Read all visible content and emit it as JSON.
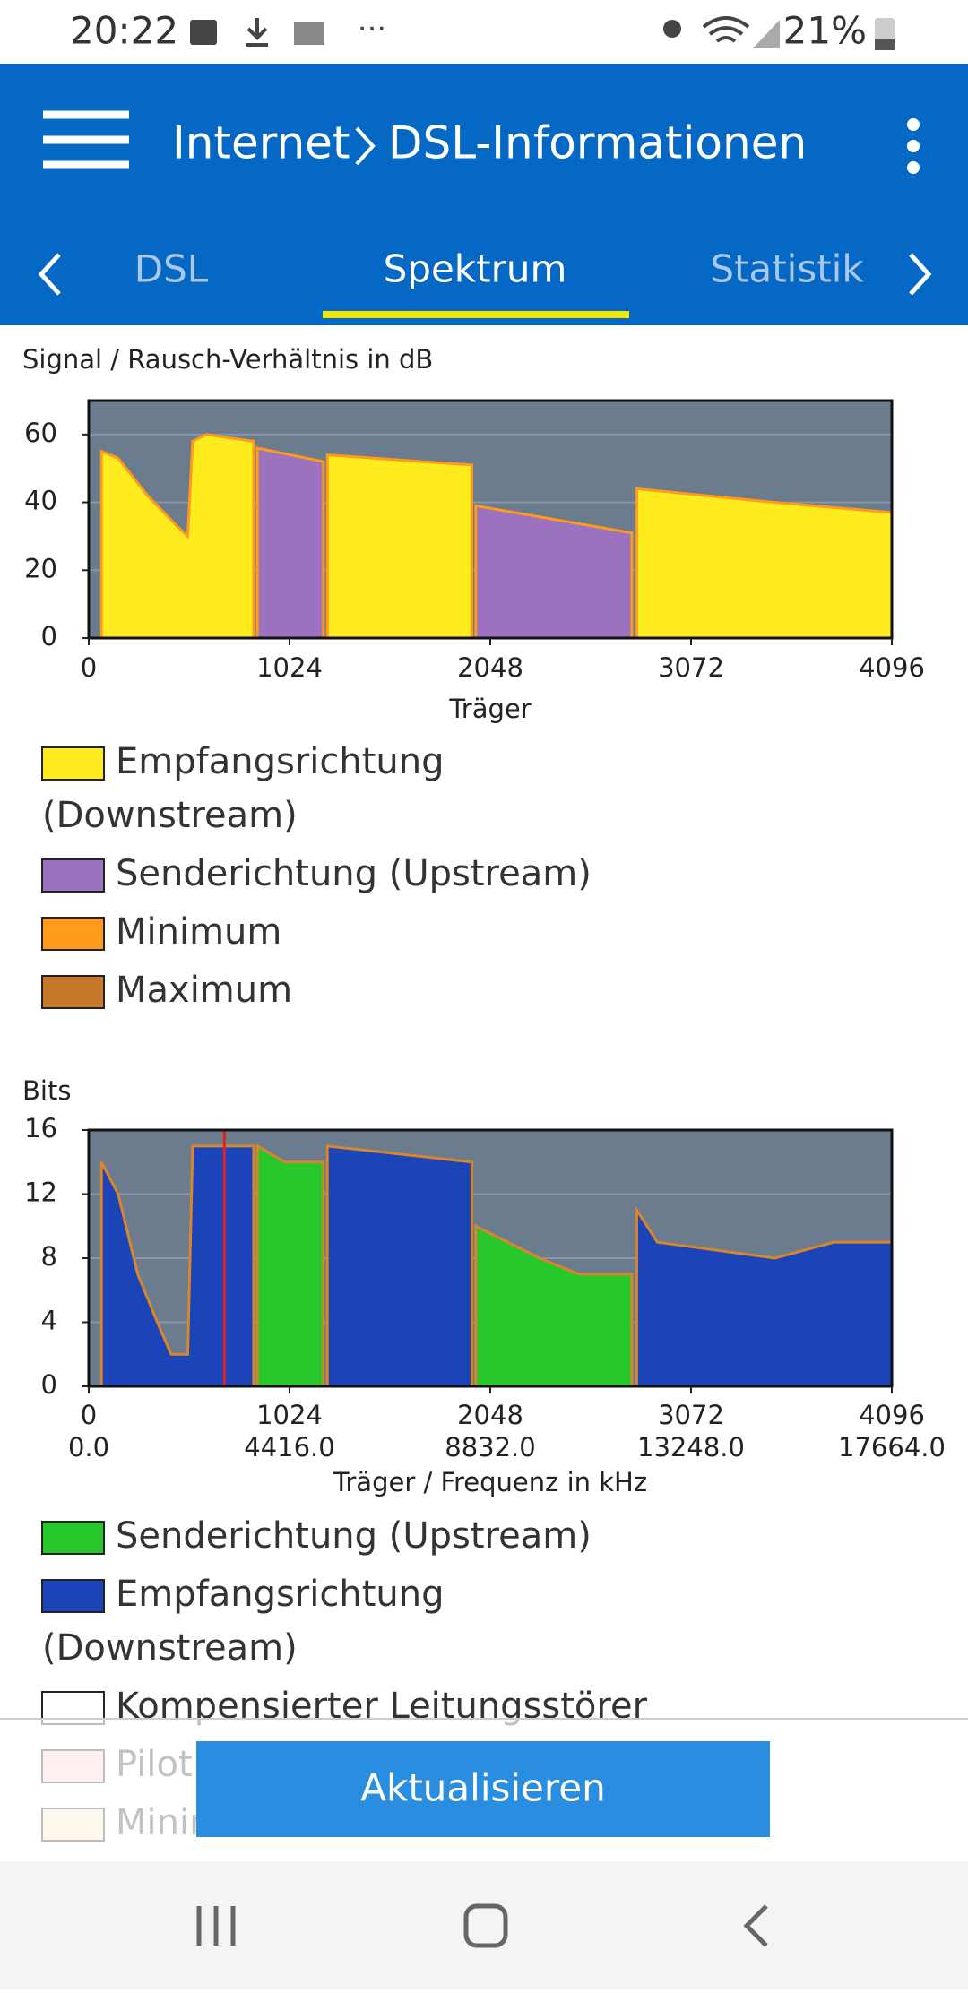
{
  "status_bar": {
    "time": "20:22",
    "battery": "21%"
  },
  "app_bar": {
    "title_parent": "Internet",
    "title": "DSL-Informationen"
  },
  "tabs": [
    "DSL",
    "Spektrum",
    "Statistik"
  ],
  "chart_data": [
    {
      "type": "area",
      "title": "Signal / Rausch-Verhältnis in dB",
      "xlabel": "Träger",
      "xlim": [
        0,
        4096
      ],
      "xticks": [
        0,
        1024,
        2048,
        3072,
        4096
      ],
      "ylim": [
        0,
        70
      ],
      "yticks": [
        0,
        20,
        40,
        60
      ],
      "grid": true,
      "series": [
        {
          "name": "Empfangsrichtung (Downstream)",
          "color": "#ffec1f",
          "x": [
            65,
            150,
            300,
            450,
            505,
            530,
            600,
            841,
            1000,
            1217,
            1954,
            2400,
            2795,
            3500,
            4096
          ],
          "values": [
            55,
            53,
            42,
            33,
            30,
            58,
            60,
            58,
            null,
            54,
            51,
            null,
            44,
            40,
            37
          ]
        },
        {
          "name": "Senderichtung (Upstream)",
          "color": "#9b72bf",
          "x": [
            860,
            1197,
            1600,
            1974,
            2770
          ],
          "values": [
            56,
            52,
            null,
            39,
            31
          ]
        }
      ],
      "outline": [
        {
          "name": "Minimum",
          "color": "#ff9a1a"
        },
        {
          "name": "Maximum",
          "color": "#c8782a"
        }
      ]
    },
    {
      "type": "area",
      "title": "Bits",
      "xlabel": "Träger / Frequenz in kHz",
      "xlim": [
        0,
        4096
      ],
      "xticks": [
        0,
        1024,
        2048,
        3072,
        4096
      ],
      "x2lim": [
        0,
        17664
      ],
      "x2ticks": [
        {
          "value": 0,
          "label": "0.0"
        },
        {
          "value": 4416,
          "label": "4416.0"
        },
        {
          "value": 8832,
          "label": "8832.0"
        },
        {
          "value": 13248,
          "label": "13248.0"
        },
        {
          "value": 17664,
          "label": "17664.0"
        }
      ],
      "ylim": [
        0,
        16
      ],
      "yticks": [
        0,
        4,
        8,
        12,
        16
      ],
      "grid": true,
      "series": [
        {
          "name": "Senderichtung (Upstream)",
          "color": "#26c82c",
          "x": [
            860,
            1000,
            1197,
            1600,
            1974,
            2300,
            2500,
            2770
          ],
          "values": [
            15,
            14,
            14,
            null,
            10,
            8,
            7,
            7
          ]
        },
        {
          "name": "Empfangsrichtung (Downstream)",
          "color": "#1b44b8",
          "x": [
            65,
            150,
            250,
            350,
            420,
            505,
            530,
            841,
            1000,
            1217,
            1954,
            2400,
            2795,
            2900,
            3500,
            3800,
            4096
          ],
          "values": [
            14,
            12,
            7,
            4,
            2,
            2,
            15,
            15,
            null,
            15,
            14,
            null,
            11,
            9,
            8,
            9,
            9
          ]
        }
      ],
      "outline": [
        {
          "name": "Kompensierter Leitungsstörer",
          "color": "#ffffff"
        },
        {
          "name": "Pilot",
          "color": "#ffcccc"
        },
        {
          "name": "Minimum",
          "color": "#ffe6c8"
        }
      ],
      "line_color": "#d9862a",
      "pilot_carrier": 692,
      "pilot_color": "#e02020"
    }
  ],
  "button": "Aktualisieren"
}
